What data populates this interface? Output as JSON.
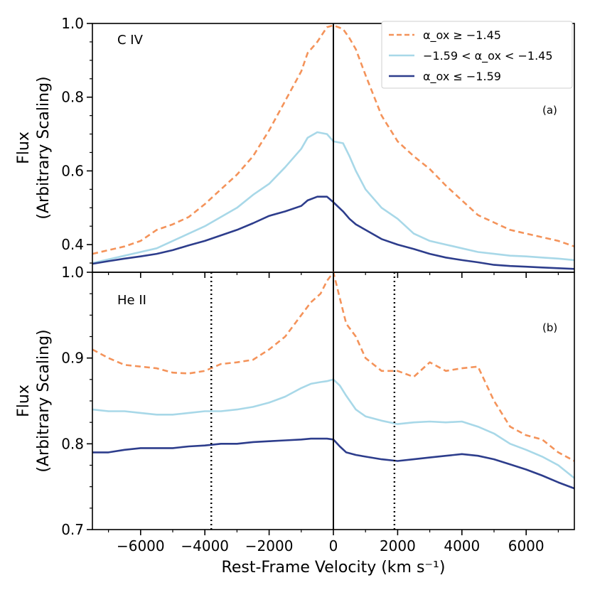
{
  "chart_data": [
    {
      "type": "line",
      "panel_label": "C IV",
      "panel_letter": "(a)",
      "ylabel_line1": "Flux",
      "ylabel_line2": "(Arbitrary Scaling)",
      "xlim": [
        -7500,
        7500
      ],
      "ylim": [
        0.325,
        1.0
      ],
      "ytick_labels": [
        "0.4",
        "0.6",
        "0.8",
        "1.0"
      ],
      "ytick_values": [
        0.4,
        0.6,
        0.8,
        1.0
      ],
      "vlines": [
        {
          "x": 0,
          "style": "solid"
        }
      ],
      "legend": {
        "placement": "top-right",
        "entries": [
          {
            "label": "α_ox ≥ −1.45",
            "series": "high"
          },
          {
            "label": "−1.59 < α_ox < −1.45",
            "series": "mid"
          },
          {
            "label": "α_ox ≤ −1.59",
            "series": "low"
          }
        ]
      },
      "series": [
        {
          "name": "alpha_ox >= -1.45",
          "color": "#F4935A",
          "style": "dashed",
          "x": [
            -7500,
            -7000,
            -6500,
            -6000,
            -5500,
            -5000,
            -4500,
            -4000,
            -3500,
            -3000,
            -2500,
            -2000,
            -1500,
            -1000,
            -800,
            -500,
            -200,
            0,
            300,
            500,
            700,
            1000,
            1500,
            2000,
            2500,
            3000,
            3500,
            4000,
            4500,
            5000,
            5500,
            6000,
            6500,
            7000,
            7500
          ],
          "values": [
            0.375,
            0.385,
            0.395,
            0.41,
            0.44,
            0.455,
            0.475,
            0.51,
            0.55,
            0.59,
            0.64,
            0.71,
            0.79,
            0.87,
            0.92,
            0.95,
            0.99,
            0.995,
            0.985,
            0.96,
            0.93,
            0.86,
            0.75,
            0.68,
            0.64,
            0.605,
            0.56,
            0.52,
            0.48,
            0.46,
            0.44,
            0.43,
            0.42,
            0.41,
            0.395
          ]
        },
        {
          "name": "-1.59 < alpha_ox < -1.45",
          "color": "#A8D8E8",
          "style": "solid",
          "x": [
            -7500,
            -7000,
            -6500,
            -6000,
            -5500,
            -5000,
            -4500,
            -4000,
            -3500,
            -3000,
            -2500,
            -2000,
            -1500,
            -1000,
            -800,
            -500,
            -200,
            0,
            300,
            500,
            700,
            1000,
            1500,
            2000,
            2500,
            3000,
            3500,
            4000,
            4500,
            5000,
            5500,
            6000,
            6500,
            7000,
            7500
          ],
          "values": [
            0.35,
            0.36,
            0.37,
            0.38,
            0.39,
            0.41,
            0.43,
            0.45,
            0.475,
            0.5,
            0.535,
            0.565,
            0.61,
            0.66,
            0.69,
            0.705,
            0.7,
            0.68,
            0.675,
            0.64,
            0.6,
            0.55,
            0.5,
            0.47,
            0.43,
            0.41,
            0.4,
            0.39,
            0.38,
            0.375,
            0.37,
            0.368,
            0.365,
            0.362,
            0.358
          ]
        },
        {
          "name": "alpha_ox <= -1.59",
          "color": "#2D3D8C",
          "style": "solid",
          "x": [
            -7500,
            -7000,
            -6500,
            -6000,
            -5500,
            -5000,
            -4500,
            -4000,
            -3500,
            -3000,
            -2500,
            -2000,
            -1500,
            -1000,
            -800,
            -500,
            -200,
            0,
            300,
            500,
            700,
            1000,
            1500,
            2000,
            2500,
            3000,
            3500,
            4000,
            4500,
            5000,
            5500,
            6000,
            6500,
            7000,
            7500
          ],
          "values": [
            0.348,
            0.355,
            0.362,
            0.368,
            0.375,
            0.385,
            0.398,
            0.41,
            0.425,
            0.44,
            0.458,
            0.478,
            0.49,
            0.505,
            0.52,
            0.53,
            0.53,
            0.515,
            0.49,
            0.47,
            0.455,
            0.44,
            0.415,
            0.4,
            0.388,
            0.375,
            0.365,
            0.358,
            0.352,
            0.345,
            0.342,
            0.34,
            0.338,
            0.336,
            0.334
          ]
        }
      ]
    },
    {
      "type": "line",
      "panel_label": "He II",
      "panel_letter": "(b)",
      "xlabel": "Rest-Frame Velocity (km s⁻¹)",
      "ylabel_line1": "Flux",
      "ylabel_line2": "(Arbitrary Scaling)",
      "xlim": [
        -7500,
        7500
      ],
      "ylim": [
        0.7,
        1.0
      ],
      "xtick_labels": [
        "−6000",
        "−4000",
        "−2000",
        "0",
        "2000",
        "4000",
        "6000"
      ],
      "xtick_values": [
        -6000,
        -4000,
        -2000,
        0,
        2000,
        4000,
        6000
      ],
      "ytick_labels": [
        "0.7",
        "0.8",
        "0.9",
        "1.0"
      ],
      "ytick_values": [
        0.7,
        0.8,
        0.9,
        1.0
      ],
      "vlines": [
        {
          "x": 0,
          "style": "solid"
        },
        {
          "x": -3800,
          "style": "dotted"
        },
        {
          "x": 1900,
          "style": "dotted"
        }
      ],
      "series": [
        {
          "name": "alpha_ox >= -1.45",
          "color": "#F4935A",
          "style": "dashed",
          "x": [
            -7500,
            -7000,
            -6500,
            -6000,
            -5500,
            -5000,
            -4500,
            -4000,
            -3500,
            -3000,
            -2500,
            -2000,
            -1500,
            -1000,
            -700,
            -400,
            -200,
            0,
            200,
            400,
            700,
            1000,
            1500,
            2000,
            2500,
            3000,
            3500,
            4000,
            4500,
            5000,
            5500,
            6000,
            6500,
            7000,
            7500
          ],
          "values": [
            0.91,
            0.9,
            0.892,
            0.89,
            0.888,
            0.883,
            0.882,
            0.885,
            0.893,
            0.895,
            0.898,
            0.91,
            0.925,
            0.95,
            0.965,
            0.975,
            0.99,
            1.0,
            0.97,
            0.94,
            0.925,
            0.9,
            0.885,
            0.885,
            0.878,
            0.895,
            0.885,
            0.888,
            0.89,
            0.85,
            0.82,
            0.81,
            0.805,
            0.79,
            0.78
          ]
        },
        {
          "name": "-1.59 < alpha_ox < -1.45",
          "color": "#A8D8E8",
          "style": "solid",
          "x": [
            -7500,
            -7000,
            -6500,
            -6000,
            -5500,
            -5000,
            -4500,
            -4000,
            -3500,
            -3000,
            -2500,
            -2000,
            -1500,
            -1000,
            -700,
            -400,
            -200,
            0,
            200,
            400,
            700,
            1000,
            1500,
            2000,
            2500,
            3000,
            3500,
            4000,
            4500,
            5000,
            5500,
            6000,
            6500,
            7000,
            7500
          ],
          "values": [
            0.84,
            0.838,
            0.838,
            0.836,
            0.834,
            0.834,
            0.836,
            0.838,
            0.838,
            0.84,
            0.843,
            0.848,
            0.855,
            0.865,
            0.87,
            0.872,
            0.873,
            0.875,
            0.868,
            0.856,
            0.84,
            0.832,
            0.827,
            0.823,
            0.825,
            0.826,
            0.825,
            0.826,
            0.82,
            0.812,
            0.8,
            0.793,
            0.785,
            0.775,
            0.76
          ]
        },
        {
          "name": "alpha_ox <= -1.59",
          "color": "#2D3D8C",
          "style": "solid",
          "x": [
            -7500,
            -7000,
            -6500,
            -6000,
            -5500,
            -5000,
            -4500,
            -4000,
            -3500,
            -3000,
            -2500,
            -2000,
            -1500,
            -1000,
            -700,
            -400,
            -200,
            0,
            200,
            400,
            700,
            1000,
            1500,
            2000,
            2500,
            3000,
            3500,
            4000,
            4500,
            5000,
            5500,
            6000,
            6500,
            7000,
            7500
          ],
          "values": [
            0.79,
            0.79,
            0.793,
            0.795,
            0.795,
            0.795,
            0.797,
            0.798,
            0.8,
            0.8,
            0.802,
            0.803,
            0.804,
            0.805,
            0.806,
            0.806,
            0.806,
            0.805,
            0.797,
            0.79,
            0.787,
            0.785,
            0.782,
            0.78,
            0.782,
            0.784,
            0.786,
            0.788,
            0.786,
            0.782,
            0.776,
            0.77,
            0.763,
            0.755,
            0.748
          ]
        }
      ]
    }
  ]
}
